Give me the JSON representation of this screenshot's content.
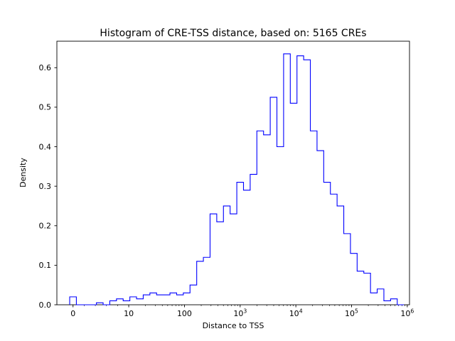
{
  "chart_data": {
    "type": "bar",
    "subtype": "step-histogram",
    "title": "Histogram of CRE-TSS distance, based on: 5165 CREs",
    "xlabel": "Distance to TSS",
    "ylabel": "Density",
    "x_scale": "symlog",
    "u_definition": "u = log10(x) for x >= 10; the linear segment x=0..10 maps to u=0..1",
    "xlim_u": [
      -0.29,
      6.04
    ],
    "ylim": [
      0,
      0.667
    ],
    "grid": false,
    "legend": "none",
    "line_color": "#0000ff",
    "x_ticks": [
      {
        "u": 0,
        "text": "0"
      },
      {
        "u": 1,
        "text": "10"
      },
      {
        "u": 2,
        "text": "100"
      },
      {
        "u": 3,
        "base": "10",
        "sup": "3"
      },
      {
        "u": 4,
        "base": "10",
        "sup": "4"
      },
      {
        "u": 5,
        "base": "10",
        "sup": "5"
      },
      {
        "u": 6,
        "base": "10",
        "sup": "6"
      }
    ],
    "y_ticks": [
      {
        "v": 0.0,
        "text": "0.0"
      },
      {
        "v": 0.1,
        "text": "0.1"
      },
      {
        "v": 0.2,
        "text": "0.2"
      },
      {
        "v": 0.3,
        "text": "0.3"
      },
      {
        "v": 0.4,
        "text": "0.4"
      },
      {
        "v": 0.5,
        "text": "0.5"
      },
      {
        "v": 0.6,
        "text": "0.6"
      }
    ],
    "bin_edges_u": [
      -0.06,
      0.06,
      0.18,
      0.3,
      0.42,
      0.54,
      0.66,
      0.78,
      0.9,
      1.02,
      1.14,
      1.26,
      1.38,
      1.5,
      1.62,
      1.74,
      1.86,
      1.98,
      2.1,
      2.22,
      2.34,
      2.46,
      2.58,
      2.7,
      2.82,
      2.94,
      3.06,
      3.18,
      3.3,
      3.42,
      3.54,
      3.66,
      3.78,
      3.9,
      4.02,
      4.14,
      4.26,
      4.38,
      4.5,
      4.62,
      4.74,
      4.86,
      4.98,
      5.1,
      5.22,
      5.34,
      5.46,
      5.58,
      5.7,
      5.82,
      5.94
    ],
    "densities": [
      0.02,
      0,
      0,
      0,
      0.005,
      0,
      0.01,
      0.015,
      0.01,
      0.02,
      0.015,
      0.025,
      0.03,
      0.025,
      0.025,
      0.03,
      0.025,
      0.03,
      0.05,
      0.11,
      0.12,
      0.23,
      0.21,
      0.25,
      0.23,
      0.31,
      0.29,
      0.33,
      0.44,
      0.43,
      0.525,
      0.4,
      0.635,
      0.51,
      0.63,
      0.62,
      0.44,
      0.39,
      0.31,
      0.28,
      0.25,
      0.18,
      0.13,
      0.085,
      0.08,
      0.03,
      0.04,
      0.01,
      0.015,
      0
    ]
  }
}
